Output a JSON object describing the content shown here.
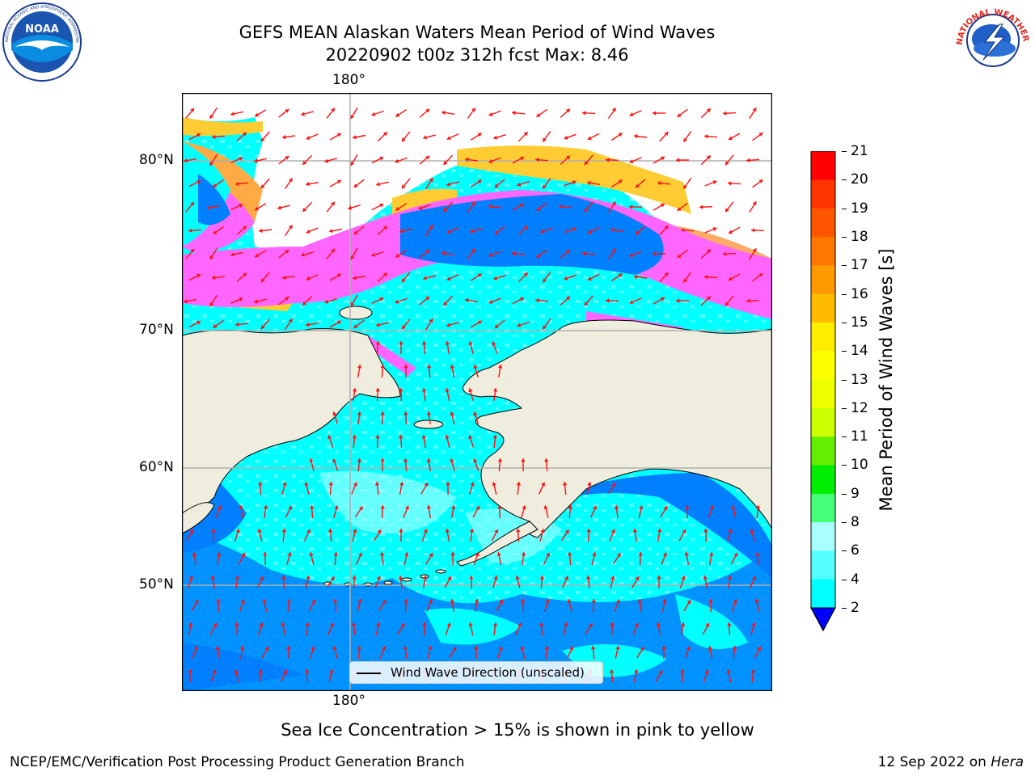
{
  "title": {
    "line1": "GEFS MEAN Alaskan Waters Mean Period of Wind Waves",
    "line2": "20220902 t00z 312h fcst   Max: 8.46"
  },
  "map": {
    "lon_label_top": "180°",
    "lon_label_bottom": "180°",
    "lat_labels": [
      "80°N",
      "70°N",
      "60°N",
      "50°N"
    ],
    "legend_label": "Wind Wave Direction (unscaled)",
    "colors": {
      "land": "#efedde",
      "ocean_cyan": "#00ffff",
      "ocean_blue": "#0080ff",
      "arrow": "#ff1010",
      "ice_pink": "#ff66ff",
      "ice_yellow": "#ffcc33"
    }
  },
  "colorbar": {
    "label": "Mean Period of Wind Waves [s]",
    "ticks": [
      "21",
      "20",
      "19",
      "18",
      "17",
      "16",
      "15",
      "14",
      "13",
      "12",
      "11",
      "10",
      "9",
      "8",
      "6",
      "4",
      "2"
    ],
    "colors": [
      "#ff0000",
      "#ff3300",
      "#ff5500",
      "#ff7700",
      "#ff9900",
      "#ffbb00",
      "#ffee00",
      "#ffff00",
      "#eeff00",
      "#ccff00",
      "#66ee00",
      "#00ee00",
      "#44ff77",
      "#aaffff",
      "#55ffff",
      "#00ffff",
      "#0080ff"
    ],
    "under_color": "#0000ff"
  },
  "footer": {
    "note": "Sea Ice Concentration > 15% is shown in pink to yellow",
    "left": "NCEP/EMC/Verification Post Processing Product Generation Branch",
    "right_date": "12 Sep 2022 on ",
    "right_host": "Hera"
  },
  "logos": {
    "noaa_text": "NOAA",
    "noaa_ring": "NATIONAL OCEANIC AND ATMOSPHERIC ADMINISTRATION · U.S. DEPARTMENT OF COMMERCE",
    "nws_ring": "NATIONAL WEATHER SERVICE"
  }
}
